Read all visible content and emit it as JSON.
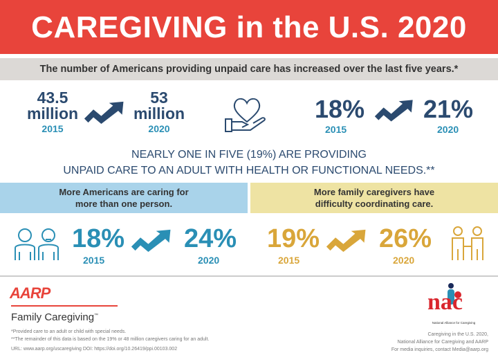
{
  "title": "CAREGIVING in the U.S. 2020",
  "subtitle": "The number of Americans providing unpaid care has increased over the last five years.*",
  "stats_row": {
    "count_2015": {
      "value": "43.5",
      "unit": "million",
      "year": "2015"
    },
    "count_2020": {
      "value": "53",
      "unit": "million",
      "year": "2020"
    },
    "pct_2015": {
      "value": "18%",
      "year": "2015"
    },
    "pct_2020": {
      "value": "21%",
      "year": "2020"
    }
  },
  "nearly": {
    "line1": "NEARLY ONE IN FIVE (19%) ARE PROVIDING",
    "line2": "UNPAID CARE TO AN ADULT WITH HEALTH OR FUNCTIONAL NEEDS.**"
  },
  "left_panel": {
    "heading1": "More Americans are caring for",
    "heading2": "more than one person.",
    "from": "18%",
    "from_year": "2015",
    "to": "24%",
    "to_year": "2020"
  },
  "right_panel": {
    "heading1": "More family caregivers have",
    "heading2": "difficulty coordinating care.",
    "from": "19%",
    "from_year": "2015",
    "to": "26%",
    "to_year": "2020"
  },
  "footer": {
    "aarp_logo": "AARP",
    "aarp_sub": "Family Caregiving",
    "tm": "™",
    "note1": "*Provided care to an adult or child with special needs.",
    "note2": "**The remainder of this data is based on the 19% or 48 million caregivers caring for an adult.",
    "url": "URL: www.aarp.org/uscaregiving    DOI: https://doi.org/10.26419/ppi.00103.002",
    "nac_logo": "nac",
    "nac_name": "National Alliance for Caregiving",
    "cite1": "Caregiving in the U.S. 2020,",
    "cite2": "National Alliance for Caregiving and AARP",
    "cite3": "For media inquiries, contact Media@aarp.org"
  },
  "colors": {
    "banner": "#e8443b",
    "navy": "#2b4a6f",
    "teal": "#2a8fb5",
    "blue_panel": "#a9d3ea",
    "yellow_panel": "#eee3a3",
    "gold": "#d9a63a"
  }
}
